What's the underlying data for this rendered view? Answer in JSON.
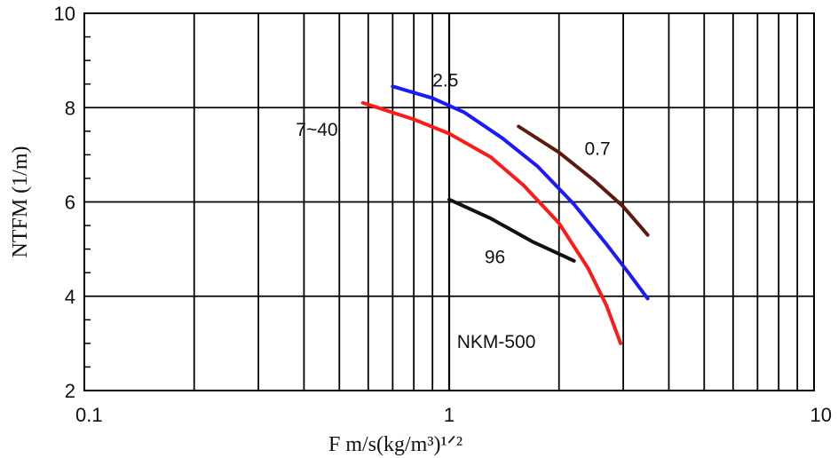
{
  "chart_data": {
    "type": "line",
    "xlabel": "F    m/s(kg/m³)¹ᐟ²",
    "ylabel": "NTFM  (1/m)",
    "xscale": "log",
    "xlim": [
      0.1,
      10
    ],
    "ylim": [
      2,
      10
    ],
    "grid": true,
    "x_ticks": [
      {
        "value": 0.1,
        "label": "0.1"
      },
      {
        "value": 1,
        "label": "1"
      },
      {
        "value": 10,
        "label": "10"
      }
    ],
    "y_ticks": [
      {
        "value": 2,
        "label": "2"
      },
      {
        "value": 4,
        "label": "4"
      },
      {
        "value": 6,
        "label": "6"
      },
      {
        "value": 8,
        "label": "8"
      },
      {
        "value": 10,
        "label": "10"
      }
    ],
    "series": [
      {
        "name": "7~40",
        "color": "#ff1a1a",
        "points": [
          [
            0.58,
            8.1
          ],
          [
            0.8,
            7.75
          ],
          [
            1.0,
            7.45
          ],
          [
            1.3,
            6.95
          ],
          [
            1.6,
            6.35
          ],
          [
            2.0,
            5.55
          ],
          [
            2.4,
            4.6
          ],
          [
            2.7,
            3.8
          ],
          [
            2.95,
            3.0
          ]
        ]
      },
      {
        "name": "2.5",
        "color": "#1a1aff",
        "points": [
          [
            0.7,
            8.45
          ],
          [
            0.9,
            8.2
          ],
          [
            1.1,
            7.9
          ],
          [
            1.4,
            7.35
          ],
          [
            1.75,
            6.75
          ],
          [
            2.2,
            5.95
          ],
          [
            2.7,
            5.1
          ],
          [
            3.1,
            4.5
          ],
          [
            3.5,
            3.95
          ]
        ]
      },
      {
        "name": "0.7",
        "color": "#5c1a10",
        "points": [
          [
            1.55,
            7.6
          ],
          [
            2.0,
            7.05
          ],
          [
            2.5,
            6.45
          ],
          [
            3.0,
            5.9
          ],
          [
            3.5,
            5.3
          ]
        ]
      },
      {
        "name": "96",
        "color": "#111111",
        "points": [
          [
            1.0,
            6.05
          ],
          [
            1.3,
            5.65
          ],
          [
            1.7,
            5.15
          ],
          [
            2.2,
            4.75
          ]
        ]
      }
    ],
    "annotations": [
      {
        "text": "2.5",
        "x": 0.9,
        "y": 8.45
      },
      {
        "text": "7~40",
        "x": 0.38,
        "y": 7.4
      },
      {
        "text": "0.7",
        "x": 2.35,
        "y": 7.0
      },
      {
        "text": "96",
        "x": 1.25,
        "y": 4.7
      },
      {
        "text": "NKM-500",
        "x": 1.05,
        "y": 2.9
      }
    ]
  }
}
